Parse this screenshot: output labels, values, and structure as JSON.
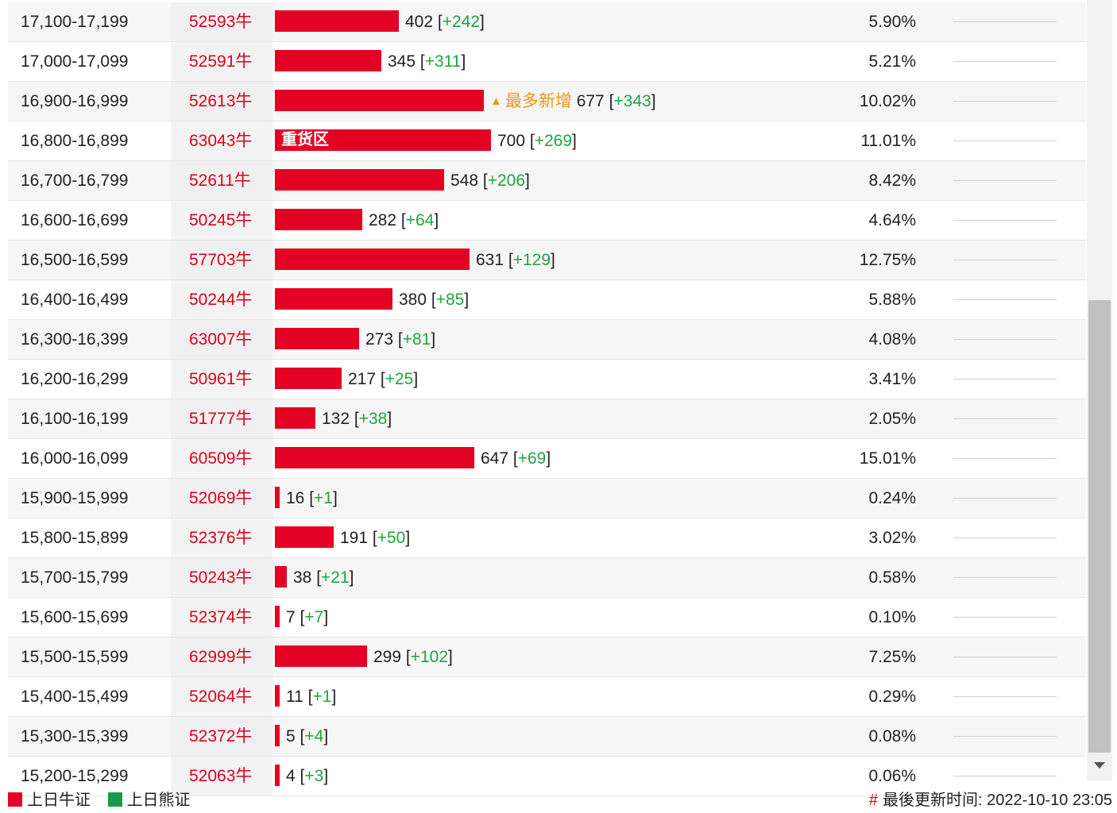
{
  "chart_data": {
    "type": "table",
    "rows": [
      {
        "range": "17,100-17,199",
        "code": "52593牛",
        "value": 402,
        "change": "+242",
        "pct": "5.90%",
        "spark": [
          0,
          0,
          0,
          0,
          0,
          0,
          0,
          0,
          0,
          0,
          0
        ]
      },
      {
        "range": "17,000-17,099",
        "code": "52591牛",
        "value": 345,
        "change": "+311",
        "pct": "5.21%",
        "spark": [
          0,
          0,
          0,
          0,
          0,
          0,
          0,
          0,
          0,
          0,
          0
        ]
      },
      {
        "range": "16,900-16,999",
        "code": "52613牛",
        "value": 677,
        "change": "+343",
        "pct": "10.02%",
        "newest": "最多新增",
        "spark": [
          0,
          0,
          0,
          0,
          0,
          0,
          0,
          0,
          0,
          0,
          0
        ]
      },
      {
        "range": "16,800-16,899",
        "code": "63043牛",
        "value": 700,
        "change": "+269",
        "pct": "11.01%",
        "label": "重货区",
        "spark": [
          0,
          0,
          0,
          0,
          0,
          0,
          0,
          0,
          0,
          0,
          0
        ]
      },
      {
        "range": "16,700-16,799",
        "code": "52611牛",
        "value": 548,
        "change": "+206",
        "pct": "8.42%",
        "spark": [
          0,
          0,
          0,
          0,
          0,
          0,
          0,
          0,
          0,
          0,
          0
        ]
      },
      {
        "range": "16,600-16,699",
        "code": "50245牛",
        "value": 282,
        "change": "+64",
        "pct": "4.64%",
        "spark": [
          0,
          0,
          0,
          0,
          0,
          0,
          0,
          0,
          0,
          0,
          0
        ]
      },
      {
        "range": "16,500-16,599",
        "code": "57703牛",
        "value": 631,
        "change": "+129",
        "pct": "12.75%",
        "spark": [
          0,
          0,
          0,
          0,
          0,
          0,
          0,
          0,
          0,
          0,
          0
        ]
      },
      {
        "range": "16,400-16,499",
        "code": "50244牛",
        "value": 380,
        "change": "+85",
        "pct": "5.88%",
        "spark": [
          0,
          0,
          0,
          0,
          0,
          0,
          0,
          0,
          0,
          0,
          0
        ]
      },
      {
        "range": "16,300-16,399",
        "code": "63007牛",
        "value": 273,
        "change": "+81",
        "pct": "4.08%",
        "spark": [
          0,
          0,
          0,
          0,
          0,
          0,
          0,
          0,
          0,
          0,
          0
        ]
      },
      {
        "range": "16,200-16,299",
        "code": "50961牛",
        "value": 217,
        "change": "+25",
        "pct": "3.41%",
        "spark": [
          0,
          0,
          0,
          0,
          0,
          0,
          0,
          0,
          0,
          0,
          0
        ]
      },
      {
        "range": "16,100-16,199",
        "code": "51777牛",
        "value": 132,
        "change": "+38",
        "pct": "2.05%",
        "spark": [
          0,
          0,
          0,
          0,
          0,
          0,
          0,
          0,
          0,
          0,
          0
        ]
      },
      {
        "range": "16,000-16,099",
        "code": "60509牛",
        "value": 647,
        "change": "+69",
        "pct": "15.01%",
        "spark": [
          0,
          0,
          0,
          0,
          0,
          0,
          0,
          0,
          0,
          0,
          0
        ]
      },
      {
        "range": "15,900-15,999",
        "code": "52069牛",
        "value": 16,
        "change": "+1",
        "pct": "0.24%",
        "spark": [
          0,
          0,
          0,
          0,
          0,
          0,
          0,
          0,
          0,
          0,
          0
        ]
      },
      {
        "range": "15,800-15,899",
        "code": "52376牛",
        "value": 191,
        "change": "+50",
        "pct": "3.02%",
        "spark": [
          0,
          0,
          0,
          0,
          0,
          0,
          0,
          0,
          0,
          0,
          0
        ]
      },
      {
        "range": "15,700-15,799",
        "code": "50243牛",
        "value": 38,
        "change": "+21",
        "pct": "0.58%",
        "spark": [
          0,
          0,
          0,
          0,
          0,
          0,
          0,
          0,
          0,
          0,
          0
        ]
      },
      {
        "range": "15,600-15,699",
        "code": "52374牛",
        "value": 7,
        "change": "+7",
        "pct": "0.10%",
        "spark": [
          0,
          0,
          0,
          0,
          0,
          0,
          0,
          0,
          0,
          0,
          0
        ]
      },
      {
        "range": "15,500-15,599",
        "code": "62999牛",
        "value": 299,
        "change": "+102",
        "pct": "7.25%",
        "spark": [
          0,
          0,
          0,
          0,
          0,
          0,
          0,
          0,
          0,
          0,
          0
        ]
      },
      {
        "range": "15,400-15,499",
        "code": "52064牛",
        "value": 11,
        "change": "+1",
        "pct": "0.29%",
        "spark": [
          0,
          0,
          0,
          0,
          0,
          0,
          0,
          0,
          0,
          0,
          0
        ]
      },
      {
        "range": "15,300-15,399",
        "code": "52372牛",
        "value": 5,
        "change": "+4",
        "pct": "0.08%",
        "spark": [
          0,
          0,
          0,
          0,
          0,
          0,
          0,
          0,
          0,
          0,
          0
        ]
      },
      {
        "range": "15,200-15,299",
        "code": "52063牛",
        "value": 4,
        "change": "+3",
        "pct": "0.06%",
        "spark": [
          0,
          0,
          0,
          0,
          0,
          0,
          0,
          0,
          0,
          0,
          0
        ]
      }
    ],
    "xlim": [
      0,
      700
    ],
    "colors": {
      "bull": "#e30124",
      "bear": "#1b9a4a",
      "change": "#22a340",
      "newest": "#f0961b",
      "code": "#e0001b"
    }
  },
  "legend": {
    "bull": "上日牛证",
    "bear": "上日熊证"
  },
  "footer": {
    "hash": "#",
    "updated_label": "最後更新时间:",
    "updated_value": "2022-10-10 23:05"
  }
}
